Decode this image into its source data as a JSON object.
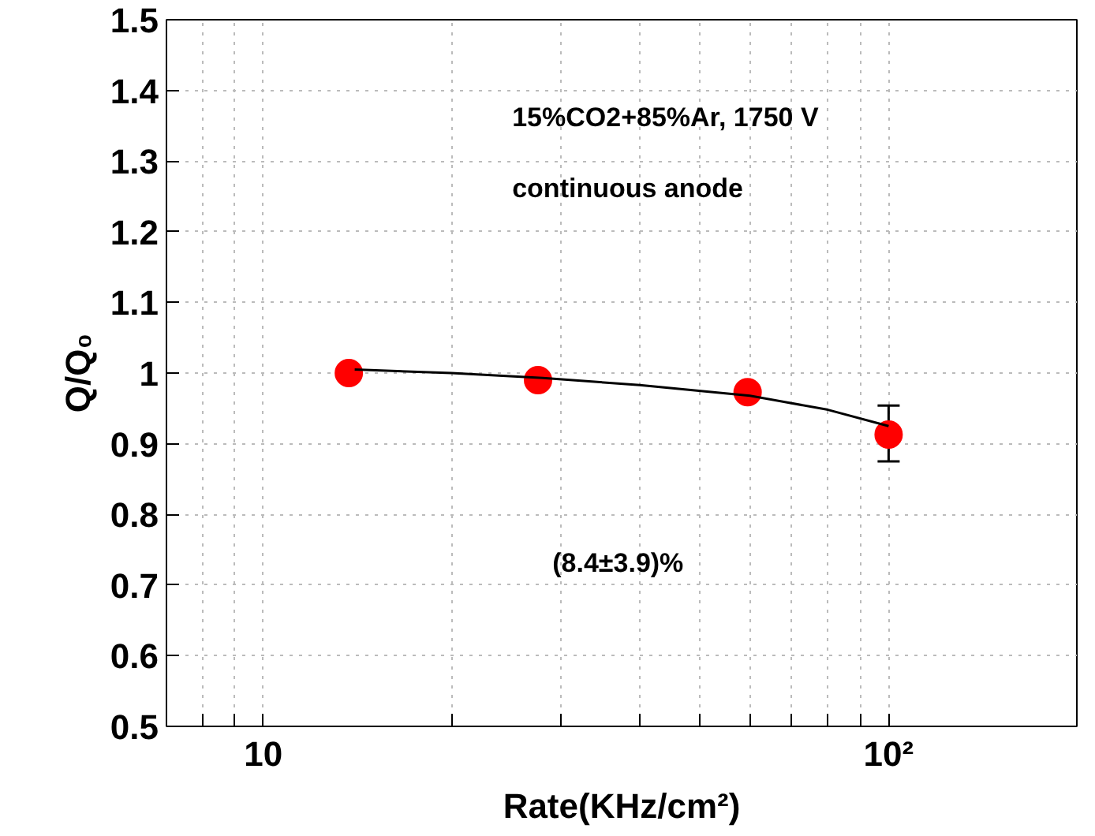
{
  "chart_data": {
    "type": "scatter",
    "xlabel": "Rate(KHz/cm²)",
    "ylabel": "Q/Q₀",
    "log": "x",
    "grid": true,
    "xlim": [
      7,
      200
    ],
    "ylim": [
      0.5,
      1.5
    ],
    "xticks": [
      {
        "value": 7,
        "label": null
      },
      {
        "value": 8,
        "label": null
      },
      {
        "value": 9,
        "label": null
      },
      10,
      {
        "value": 20,
        "label": null
      },
      {
        "value": 30,
        "label": null
      },
      {
        "value": 40,
        "label": null
      },
      {
        "value": 50,
        "label": null
      },
      {
        "value": 60,
        "label": null
      },
      {
        "value": 70,
        "label": null
      },
      {
        "value": 80,
        "label": null
      },
      {
        "value": 90,
        "label": null
      },
      {
        "value": 100,
        "label": "10²"
      },
      {
        "value": 200,
        "label": null
      }
    ],
    "yticks": [
      0.5,
      0.6,
      0.7,
      0.8,
      0.9,
      {
        "value": 1.0,
        "label": "1"
      },
      1.1,
      1.2,
      1.3,
      1.4,
      1.5
    ],
    "series": [
      {
        "marker": "circle",
        "color": "#ff0000",
        "x": [
          13.7,
          27.5,
          59.5,
          100
        ],
        "values": [
          1.0,
          0.99,
          0.973,
          0.913
        ],
        "errors": [
          null,
          null,
          null,
          [
            0.875,
            0.954
          ]
        ]
      },
      {
        "type": "line",
        "color": "#000000",
        "x": [
          14,
          20,
          28,
          40,
          60,
          80,
          100
        ],
        "values": [
          1.005,
          1.0,
          0.993,
          0.983,
          0.968,
          0.948,
          0.925
        ]
      }
    ],
    "annotations": [
      "15%CO2+85%Ar, 1750 V",
      "continuous anode",
      "(8.4±3.9)%"
    ]
  }
}
